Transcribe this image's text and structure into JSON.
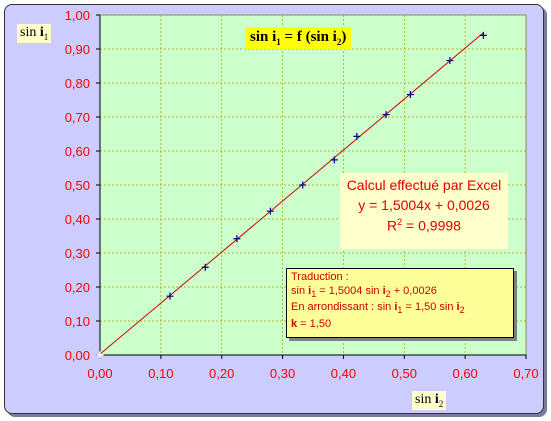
{
  "chart_data": {
    "type": "scatter",
    "title_parts": [
      "sin ",
      "i",
      "1",
      " = f (sin ",
      "i",
      "2",
      ")"
    ],
    "xlabel_parts": [
      "sin ",
      "i",
      "2"
    ],
    "ylabel_parts": [
      "sin ",
      "i",
      "1"
    ],
    "xlim": [
      0,
      0.7
    ],
    "ylim": [
      0,
      1.0
    ],
    "x_ticks": [
      "0,00",
      "0,10",
      "0,20",
      "0,30",
      "0,40",
      "0,50",
      "0,60",
      "0,70"
    ],
    "y_ticks": [
      "0,00",
      "0,10",
      "0,20",
      "0,30",
      "0,40",
      "0,50",
      "0,60",
      "0,70",
      "0,80",
      "0,90",
      "1,00"
    ],
    "grid": true,
    "series": [
      {
        "x": [
          0.0,
          0.115,
          0.173,
          0.225,
          0.28,
          0.333,
          0.385,
          0.422,
          0.47,
          0.51,
          0.575,
          0.63
        ],
        "y": [
          0.0,
          0.173,
          0.258,
          0.342,
          0.423,
          0.5,
          0.574,
          0.643,
          0.707,
          0.766,
          0.866,
          0.94
        ]
      }
    ],
    "trendline": {
      "slope": 1.5004,
      "intercept": 0.0026
    },
    "colors": {
      "plot_bg": "#ccffcc",
      "frame_bg": "#ccccff",
      "axis_tick": "#ff0000",
      "trendline": "#cc0000",
      "marker": "#000080",
      "grid": "#a0a000"
    }
  },
  "calc_box": {
    "line1": "Calcul effectué par Excel",
    "line2": "y = 1,5004x + 0,0026",
    "line3_prefix": "R",
    "line3_sup": "2",
    "line3_suffix": " = 0,9998"
  },
  "trad_box": {
    "l1": "Traduction :",
    "l2a": "sin ",
    "l2b": "i",
    "l2c": "1",
    "l2d": " = 1,5004 sin ",
    "l2e": "i",
    "l2f": "2",
    "l2g": " + 0,0026",
    "l3a": "En arrondissant :  sin ",
    "l3b": "i",
    "l3c": "1",
    "l3d": " = 1,50 sin ",
    "l3e": "i",
    "l3f": "2",
    "l4a": "k",
    "l4b": " = 1,50"
  }
}
